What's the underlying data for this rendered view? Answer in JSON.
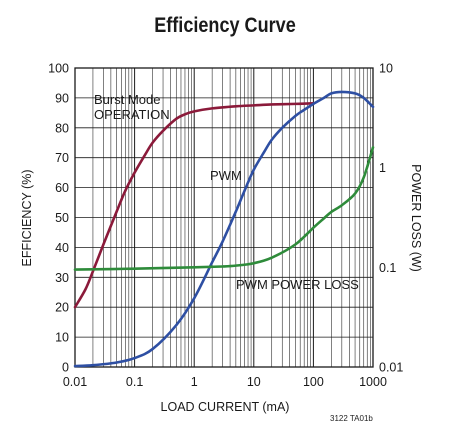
{
  "title": "Efficiency Curve",
  "figure_id": "3122 TA01b",
  "colors": {
    "burst": "#8b1a3a",
    "pwm": "#2e4fa3",
    "loss": "#2e8b3a",
    "grid": "#1a1a1a"
  },
  "chart_data": {
    "type": "line",
    "title": "Efficiency Curve",
    "xlabel": "LOAD CURRENT (mA)",
    "ylabel": "EFFICIENCY (%)",
    "y2label": "POWER LOSS (W)",
    "xscale": "log",
    "xlim": [
      0.01,
      1000
    ],
    "ylim": [
      0,
      100
    ],
    "y2scale": "log",
    "y2lim": [
      0.01,
      10
    ],
    "grid": true,
    "x_ticks": [
      "0.01",
      "0.1",
      "1",
      "10",
      "100",
      "1000"
    ],
    "y_ticks": [
      "0",
      "10",
      "20",
      "30",
      "40",
      "50",
      "60",
      "70",
      "80",
      "90",
      "100"
    ],
    "y2_ticks": [
      "0.01",
      "0.1",
      "1",
      "10"
    ],
    "series": [
      {
        "label": "Burst Mode OPERATION",
        "axis": "left",
        "color": "#8b1a3a",
        "x": [
          0.01,
          0.015,
          0.02,
          0.03,
          0.05,
          0.07,
          0.1,
          0.15,
          0.2,
          0.3,
          0.5,
          0.7,
          1,
          2,
          5,
          10,
          20,
          50,
          100
        ],
        "y": [
          20,
          26,
          32,
          41,
          52,
          59,
          65,
          71,
          75,
          79,
          83,
          84.5,
          85.5,
          86.5,
          87.2,
          87.5,
          87.8,
          88,
          88.2
        ]
      },
      {
        "label": "PWM",
        "axis": "left",
        "color": "#2e4fa3",
        "x": [
          0.01,
          0.02,
          0.05,
          0.1,
          0.2,
          0.5,
          1,
          2,
          3,
          5,
          7,
          10,
          15,
          20,
          30,
          50,
          70,
          100,
          150,
          200,
          300,
          500,
          700,
          1000
        ],
        "y": [
          0.3,
          0.6,
          1.5,
          3,
          6,
          14,
          23,
          35,
          42,
          52,
          59,
          66,
          72,
          76,
          80,
          84,
          86,
          88,
          90,
          91.5,
          92,
          91.5,
          90,
          87
        ]
      },
      {
        "label": "PWM POWER LOSS",
        "axis": "right",
        "color": "#2e8b3a",
        "x": [
          0.01,
          0.1,
          1,
          3,
          5,
          10,
          20,
          50,
          100,
          150,
          200,
          300,
          500,
          700,
          1000
        ],
        "y": [
          0.095,
          0.097,
          0.1,
          0.102,
          0.104,
          0.11,
          0.125,
          0.17,
          0.25,
          0.31,
          0.36,
          0.42,
          0.55,
          0.8,
          1.6
        ]
      }
    ],
    "annotations": [
      "Burst Mode",
      "OPERATION",
      "PWM",
      "PWM POWER LOSS"
    ]
  }
}
